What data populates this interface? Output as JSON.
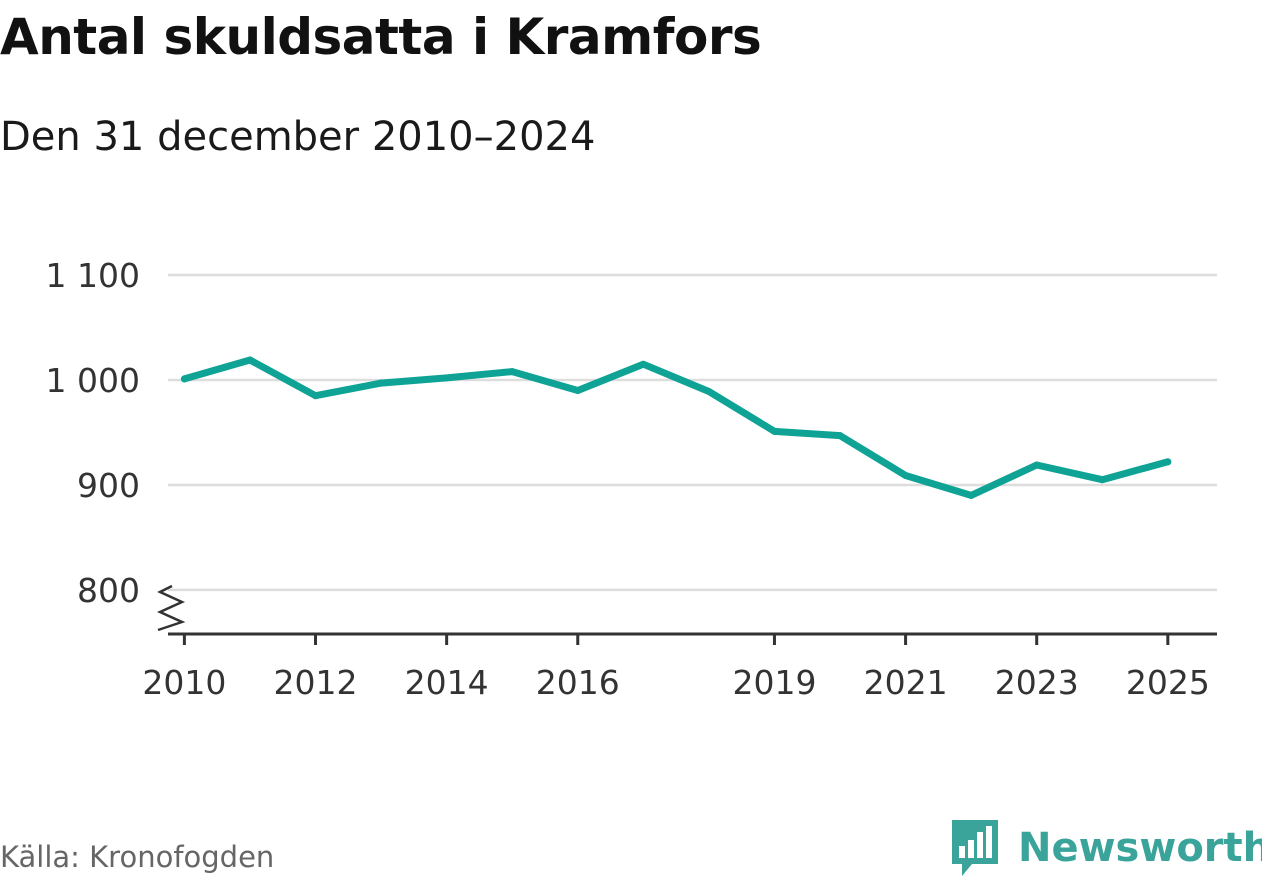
{
  "header": {
    "title": "Antal skuldsatta i Kramfors",
    "subtitle": "Den 31 december 2010–2024"
  },
  "footer": {
    "source": "Källa: Kronofogden",
    "brand": "Newsworthy",
    "brand_icon": "bar-chart-speech-bubble-icon"
  },
  "colors": {
    "line": "#0fa396",
    "grid": "#dddddd",
    "axis": "#333333",
    "brand": "#3aa39a"
  },
  "chart_data": {
    "type": "line",
    "title": "Antal skuldsatta i Kramfors",
    "subtitle": "Den 31 december 2010–2024",
    "xlabel": "",
    "ylabel": "",
    "xlim": [
      2009.75,
      2025.75
    ],
    "ylim": [
      758,
      1100
    ],
    "axis_break": true,
    "grid": true,
    "y_ticks": [
      800,
      900,
      1000,
      1100
    ],
    "y_tick_labels": [
      "800",
      "900",
      "1 000",
      "1 100"
    ],
    "x_ticks": [
      2010,
      2012,
      2014,
      2016,
      2019,
      2021,
      2023,
      2025
    ],
    "x_tick_labels": [
      "2010",
      "2012",
      "2014",
      "2016",
      "2019",
      "2021",
      "2023",
      "2025"
    ],
    "series": [
      {
        "name": "Antal skuldsatta",
        "x": [
          2010,
          2011,
          2012,
          2013,
          2014,
          2015,
          2016,
          2017,
          2018,
          2019,
          2020,
          2021,
          2022,
          2023,
          2024,
          2025
        ],
        "values": [
          1001,
          1019,
          985,
          997,
          1002,
          1008,
          990,
          1015,
          989,
          951,
          947,
          909,
          890,
          919,
          905,
          922
        ]
      }
    ]
  }
}
